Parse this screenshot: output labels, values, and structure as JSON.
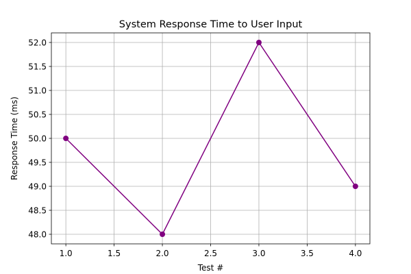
{
  "chart_data": {
    "type": "line",
    "title": "System Response Time to User Input",
    "xlabel": "Test #",
    "ylabel": "Response Time (ms)",
    "x": [
      1,
      2,
      3,
      4
    ],
    "series": [
      {
        "values": [
          50,
          48,
          52,
          49
        ],
        "color": "#800080",
        "marker": "circle"
      }
    ],
    "xlim": [
      0.85,
      4.15
    ],
    "ylim": [
      47.8,
      52.2
    ],
    "xticks": [
      "1.0",
      "1.5",
      "2.0",
      "2.5",
      "3.0",
      "3.5",
      "4.0"
    ],
    "yticks": [
      "48.0",
      "48.5",
      "49.0",
      "49.5",
      "50.0",
      "50.5",
      "51.0",
      "51.5",
      "52.0"
    ],
    "grid": true,
    "legend": "none"
  }
}
